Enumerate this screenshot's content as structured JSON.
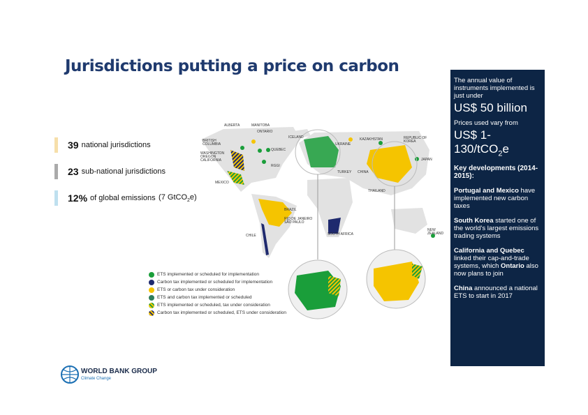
{
  "title": "Jurisdictions putting a price on carbon",
  "stats": [
    {
      "number": "39",
      "text": "national jurisdictions"
    },
    {
      "number": "23",
      "text": "sub-national jurisdictions"
    },
    {
      "number": "12%",
      "text": "of global emissions",
      "extra_before": "(7 GtCO",
      "extra_sub": "2",
      "extra_after": "e)"
    }
  ],
  "map_labels": [
    "ALBERTA",
    "MANITOBA",
    "ONTARIO",
    "BRITISH COLUMBIA",
    "QUEBEC",
    "WASHINGTON OREGON CALIFORNIA",
    "RGGI",
    "MEXICO",
    "ICELAND",
    "UKRAINE",
    "KAZAKHSTAN",
    "REPUBLIC OF KOREA",
    "JAPAN",
    "TURKEY",
    "CHINA",
    "THAILAND",
    "BRAZIL",
    "RIO DE JANEIRO SÃO PAULO",
    "CHILE",
    "SOUTH AFRICA",
    "NEW ZEALAND"
  ],
  "legend": [
    "ETS implemented or scheduled for implementation",
    "Carbon tax implemented or scheduled for implementation",
    "ETS or carbon tax under consideration",
    "ETS and carbon tax implemented or scheduled",
    "ETS implemented or scheduled, tax under consideration",
    "Carbon tax implemented or scheduled, ETS under consideration"
  ],
  "sidebar": {
    "intro": "The annual value of instruments implemented is just under",
    "value": "US$ 50 billion",
    "prices_intro": "Prices used vary from",
    "prices_before": "US$ 1-130/tCO",
    "prices_sub": "2",
    "prices_after": "e",
    "heading": "Key developments (2014-2015):",
    "items": [
      {
        "bold": "Portugal and Mexico",
        "text": "have implemented new carbon taxes"
      },
      {
        "bold": "South Korea",
        "text": "started one of the world's largest emissions trading systems"
      },
      {
        "bold": "California and Quebec",
        "text": "linked their cap-and-trade systems, which",
        "bold2": "Ontario",
        "text2": "also now plans to join"
      },
      {
        "bold": "China",
        "text": "announced a national ETS to start in 2017"
      }
    ]
  },
  "logo": {
    "name": "WORLD BANK GROUP",
    "sub": "Climate Change"
  }
}
